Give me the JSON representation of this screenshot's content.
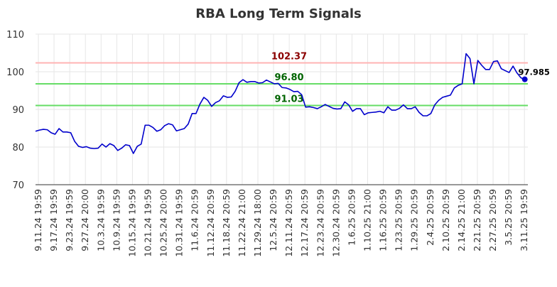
{
  "chart_data": {
    "type": "line",
    "title": "RBA Long Term Signals",
    "ylim": [
      70,
      110
    ],
    "y_ticks": [
      70,
      80,
      90,
      100,
      110
    ],
    "x_tick_labels": [
      "9.11.24 19:59",
      "9.17.24 19:59",
      "9.23.24 19:59",
      "9.27.24 20:00",
      "10.3.24 19:59",
      "10.9.24 19:59",
      "10.15.24 19:59",
      "10.21.24 19:59",
      "10.25.24 20:00",
      "10.31.24 19:59",
      "11.6.24 20:59",
      "11.12.24 20:59",
      "11.18.24 20:59",
      "11.22.24 21:00",
      "11.29.24 18:00",
      "12.5.24 20:59",
      "12.11.24 20:59",
      "12.17.24 20:59",
      "12.23.24 20:59",
      "12.30.24 20:59",
      "1.6.25 20:59",
      "1.10.25 21:00",
      "1.16.25 20:59",
      "1.23.25 20:59",
      "1.29.25 20:59",
      "2.4.25 20:59",
      "2.10.25 20:59",
      "2.14.25 21:00",
      "2.21.25 20:59",
      "2.27.25 20:59",
      "3.5.25 20:59",
      "3.11.25 19:59"
    ],
    "grid": true,
    "series": [
      {
        "color": "#0000cc",
        "values": [
          84.2,
          84.5,
          84.7,
          84.6,
          83.8,
          83.4,
          84.9,
          84.0,
          84.0,
          83.8,
          81.5,
          80.2,
          79.9,
          80.1,
          79.7,
          79.6,
          79.7,
          80.8,
          80.0,
          80.9,
          80.4,
          79.1,
          79.7,
          80.6,
          80.4,
          78.3,
          80.2,
          80.8,
          85.8,
          85.8,
          85.2,
          84.2,
          84.6,
          85.7,
          86.2,
          85.9,
          84.3,
          84.6,
          84.9,
          86.1,
          88.9,
          88.9,
          91.4,
          93.2,
          92.4,
          90.8,
          91.8,
          92.3,
          93.6,
          93.2,
          93.3,
          94.8,
          97.1,
          97.9,
          97.2,
          97.4,
          97.4,
          97.0,
          97.1,
          97.8,
          97.3,
          96.8,
          96.9,
          95.8,
          95.7,
          95.3,
          94.7,
          94.8,
          93.9,
          90.6,
          90.7,
          90.5,
          90.2,
          90.7,
          91.3,
          90.8,
          90.3,
          90.1,
          90.2,
          92.0,
          91.2,
          89.5,
          90.2,
          90.2,
          88.6,
          89.1,
          89.2,
          89.3,
          89.5,
          89.1,
          90.7,
          89.8,
          89.8,
          90.3,
          91.2,
          90.2,
          90.2,
          90.7,
          89.2,
          88.3,
          88.3,
          88.9,
          91.2,
          92.4,
          93.2,
          93.5,
          93.8,
          95.7,
          96.4,
          96.8,
          104.8,
          103.5,
          96.8,
          103.0,
          101.7,
          100.6,
          100.6,
          102.7,
          102.9,
          100.8,
          100.3,
          99.8,
          101.5,
          99.7,
          98.4,
          97.985
        ]
      }
    ],
    "reference_lines": [
      {
        "value": 102.37,
        "label": "102.37",
        "line_color": "#ffb3b3",
        "text_color": "#8b0000"
      },
      {
        "value": 96.8,
        "label": "96.80",
        "line_color": "#66dd66",
        "text_color": "#006400"
      },
      {
        "value": 91.03,
        "label": "91.03",
        "line_color": "#66dd66",
        "text_color": "#006400"
      }
    ],
    "last_point_label": "97.985"
  }
}
